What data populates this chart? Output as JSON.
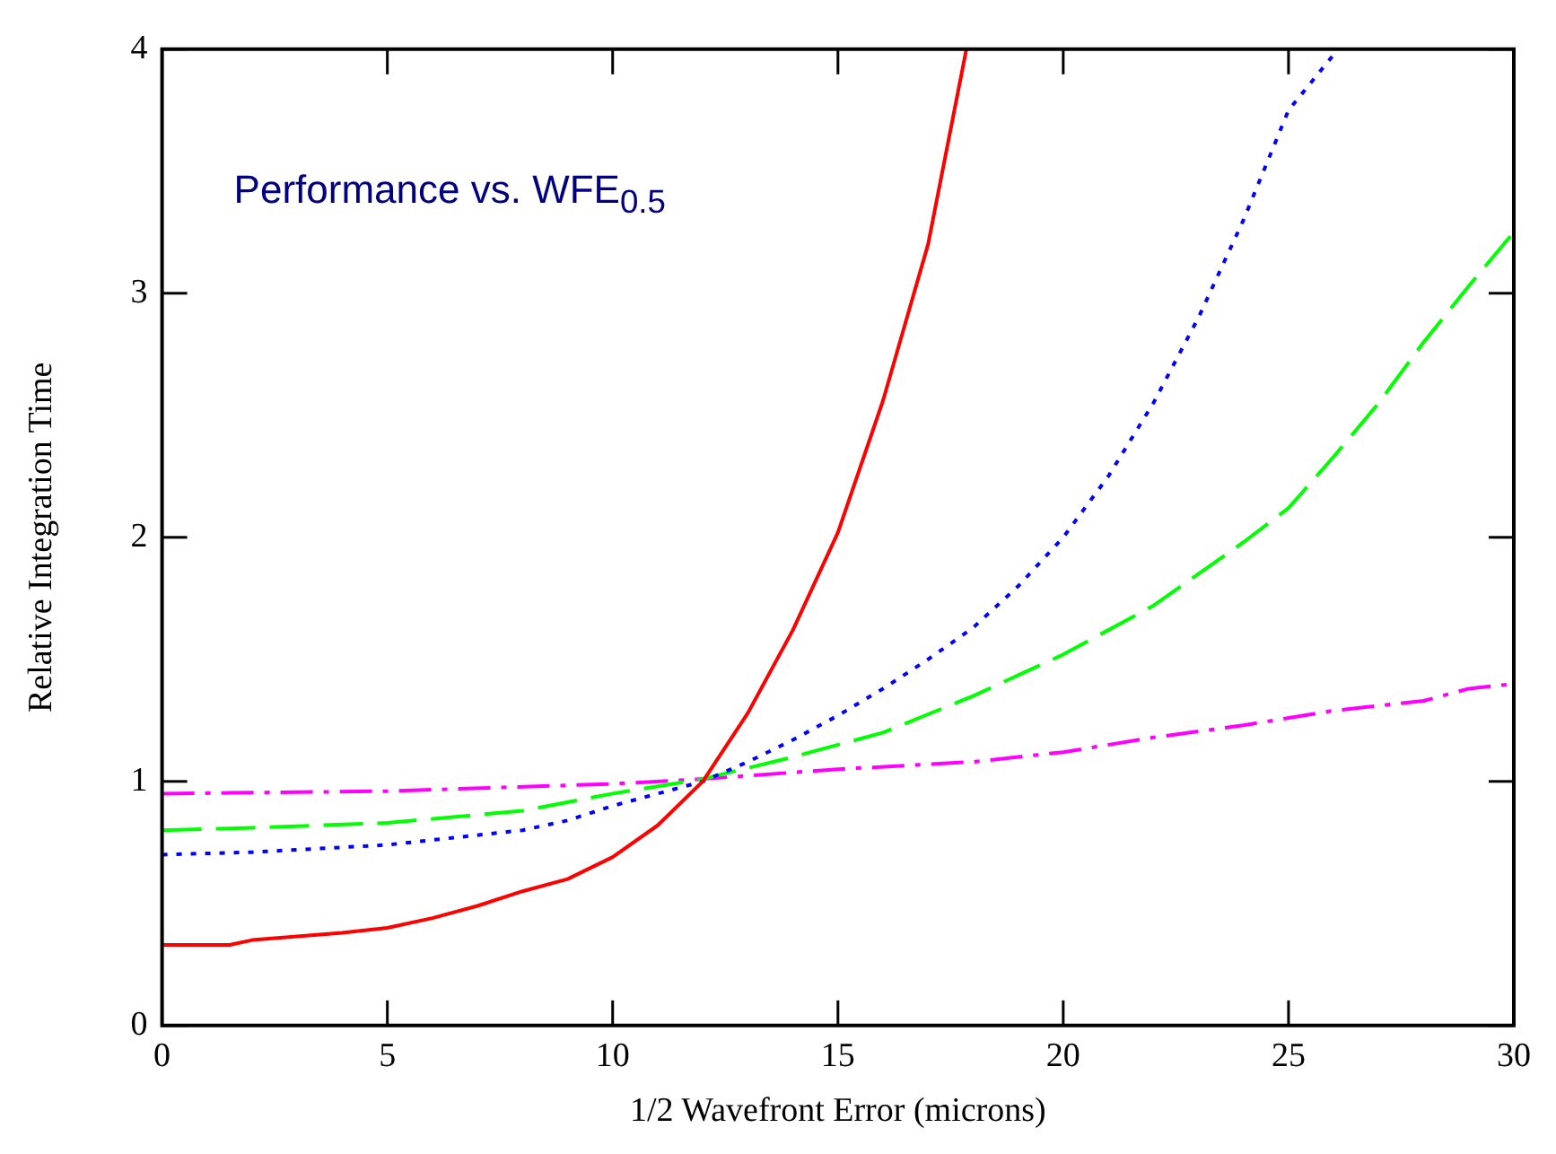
{
  "chart_data": {
    "type": "line",
    "title": "Performance vs. WFE$_{0.5}$",
    "xlabel": "1/2 Wavefront Error (microns)",
    "ylabel": "Relative Integration Time",
    "xlim": [
      0,
      30
    ],
    "ylim": [
      0,
      4
    ],
    "xticks": [
      0,
      5,
      10,
      15,
      20,
      25,
      30
    ],
    "yticks": [
      0,
      1,
      2,
      3,
      4
    ],
    "grid": false,
    "legend": false,
    "marker": "none",
    "series": [
      {
        "color": "#ff0000",
        "line_style": "solid",
        "x": [
          0,
          1.5,
          2,
          4,
          5,
          6,
          7,
          8,
          9,
          10,
          11,
          12,
          13,
          14,
          15,
          16,
          17,
          17.85
        ],
        "values": [
          0.33,
          0.33,
          0.35,
          0.38,
          0.4,
          0.44,
          0.49,
          0.55,
          0.6,
          0.69,
          0.82,
          1.0,
          1.28,
          1.62,
          2.02,
          2.56,
          3.2,
          4.0
        ]
      },
      {
        "color": "#0000ff",
        "line_style": "dotted",
        "x": [
          0,
          2,
          5,
          8,
          9,
          10,
          11,
          12,
          13,
          14,
          15,
          16,
          17,
          18,
          19,
          20,
          21,
          22,
          23,
          24,
          25,
          26.1
        ],
        "values": [
          0.7,
          0.71,
          0.74,
          0.8,
          0.84,
          0.9,
          0.95,
          1.0,
          1.08,
          1.17,
          1.27,
          1.38,
          1.5,
          1.63,
          1.8,
          2.0,
          2.25,
          2.55,
          2.9,
          3.3,
          3.75,
          4.0
        ]
      },
      {
        "color": "#00ff00",
        "line_style": "dashed",
        "x": [
          0,
          2,
          5,
          8,
          10,
          12,
          14,
          16,
          18,
          20,
          22,
          24,
          25,
          26,
          27,
          28,
          29,
          30
        ],
        "values": [
          0.8,
          0.81,
          0.83,
          0.88,
          0.95,
          1.01,
          1.1,
          1.2,
          1.35,
          1.52,
          1.72,
          1.98,
          2.12,
          2.33,
          2.55,
          2.8,
          3.03,
          3.25
        ]
      },
      {
        "color": "#ff00ff",
        "line_style": "dashdot",
        "x": [
          0,
          5,
          10,
          12,
          15,
          18,
          20,
          22,
          24,
          26,
          28,
          29,
          30
        ],
        "values": [
          0.95,
          0.96,
          0.99,
          1.01,
          1.05,
          1.08,
          1.12,
          1.18,
          1.23,
          1.29,
          1.33,
          1.38,
          1.4
        ]
      }
    ]
  }
}
